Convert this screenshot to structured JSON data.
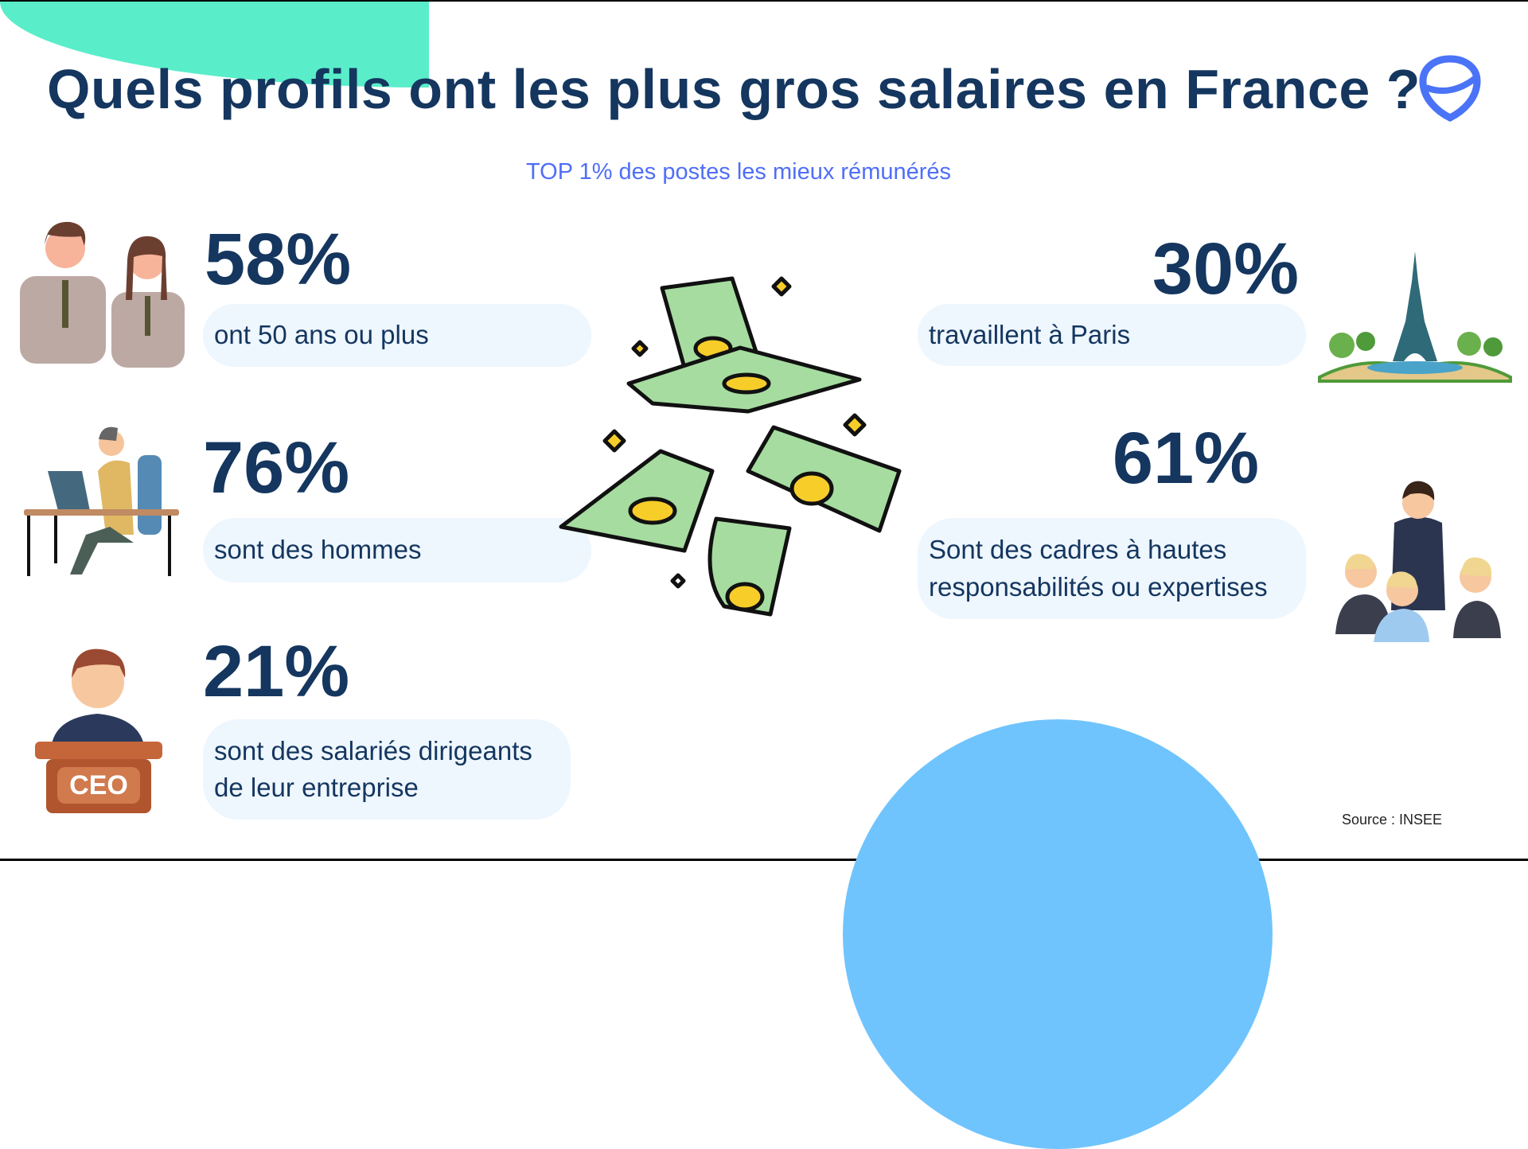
{
  "title": "Quels profils ont les plus gros salaires en France ?",
  "subtitle": "TOP 1% des postes les mieux rémunérés",
  "stats": [
    {
      "value": "58%",
      "label": "ont 50 ans ou plus",
      "icon": "business-couple-illustration"
    },
    {
      "value": "76%",
      "label": "sont des hommes",
      "icon": "man-at-desk-illustration"
    },
    {
      "value": "21%",
      "label": "sont des salariés dirigeants de leur entreprise",
      "icon": "ceo-illustration",
      "badge": "CEO"
    },
    {
      "value": "30%",
      "label": "travaillent à Paris",
      "icon": "eiffel-tower-illustration"
    },
    {
      "value": "61%",
      "label": "Sont des cadres à hautes responsabilités ou expertises",
      "icon": "team-meeting-illustration"
    }
  ],
  "source": "Source : INSEE",
  "colors": {
    "navy": "#14365f",
    "accent": "#4f6ef7",
    "teal": "#5aedc9",
    "sky": "#70c4fd",
    "pill": "#eef6fe"
  }
}
